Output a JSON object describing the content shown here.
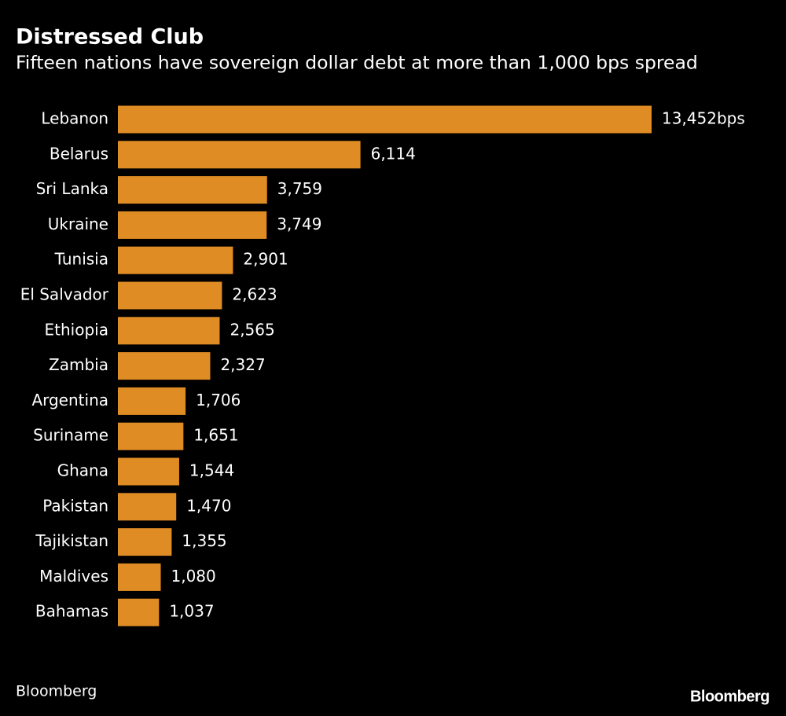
{
  "chart_data": {
    "type": "bar",
    "orientation": "horizontal",
    "title": "Distressed Club",
    "subtitle": "Fifteen nations have sovereign dollar debt at more than 1,000 bps spread",
    "categories": [
      "Lebanon",
      "Belarus",
      "Sri Lanka",
      "Ukraine",
      "Tunisia",
      "El Salvador",
      "Ethiopia",
      "Zambia",
      "Argentina",
      "Suriname",
      "Ghana",
      "Pakistan",
      "Tajikistan",
      "Maldives",
      "Bahamas"
    ],
    "values": [
      13452,
      6114,
      3759,
      3749,
      2901,
      2623,
      2565,
      2327,
      1706,
      1651,
      1544,
      1470,
      1355,
      1080,
      1037
    ],
    "value_labels": [
      "13,452bps",
      "6,114",
      "3,759",
      "3,749",
      "2,901",
      "2,623",
      "2,565",
      "2,327",
      "1,706",
      "1,651",
      "1,544",
      "1,470",
      "1,355",
      "1,080",
      "1,037"
    ],
    "color": "#e08c25",
    "source": "Bloomberg",
    "brand": "Bloomberg"
  }
}
